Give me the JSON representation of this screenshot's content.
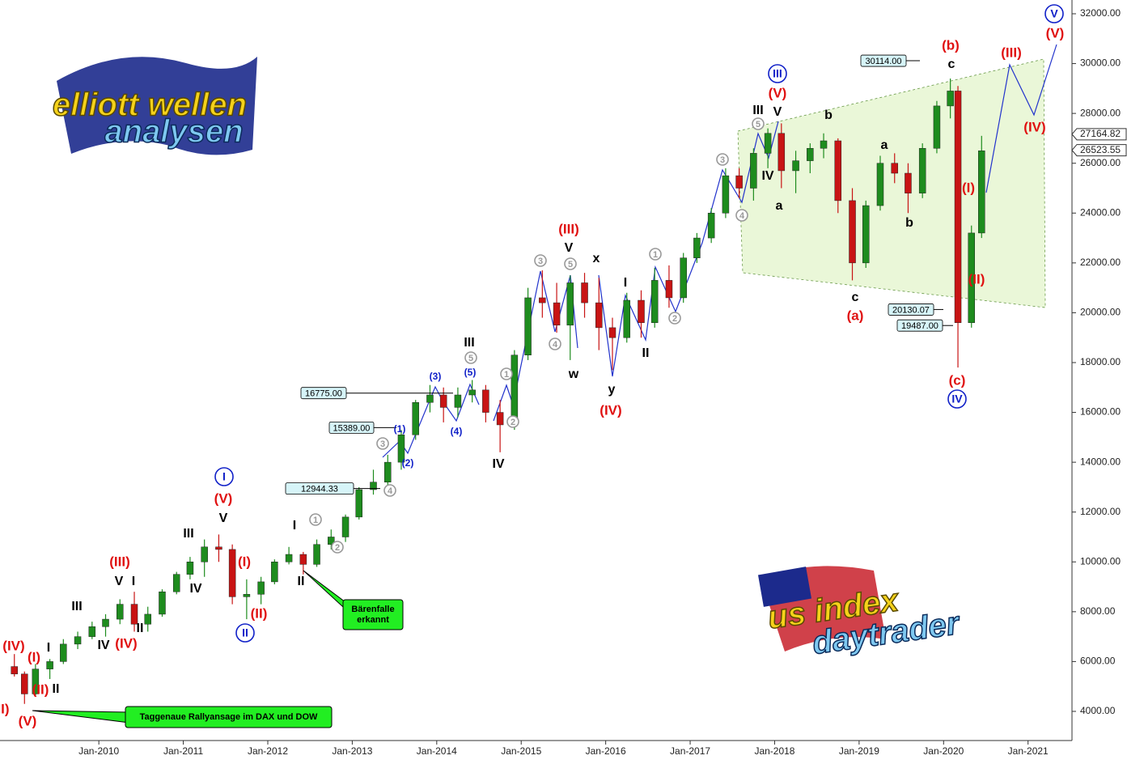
{
  "chart_data": {
    "type": "candlestick",
    "x": [
      2009.0,
      2009.12,
      2009.25,
      2009.42,
      2009.58,
      2009.75,
      2009.92,
      2010.08,
      2010.25,
      2010.42,
      2010.58,
      2010.75,
      2010.92,
      2011.08,
      2011.25,
      2011.42,
      2011.58,
      2011.75,
      2011.92,
      2012.08,
      2012.25,
      2012.42,
      2012.58,
      2012.75,
      2012.92,
      2013.08,
      2013.25,
      2013.42,
      2013.58,
      2013.75,
      2013.92,
      2014.08,
      2014.25,
      2014.42,
      2014.58,
      2014.75,
      2014.92,
      2015.08,
      2015.25,
      2015.42,
      2015.58,
      2015.75,
      2015.92,
      2016.08,
      2016.25,
      2016.42,
      2016.58,
      2016.75,
      2016.92,
      2017.08,
      2017.25,
      2017.42,
      2017.58,
      2017.75,
      2017.92,
      2018.08,
      2018.25,
      2018.42,
      2018.58,
      2018.75,
      2018.92,
      2019.08,
      2019.25,
      2019.42,
      2019.58,
      2019.75,
      2019.92,
      2020.08,
      2020.17,
      2020.33,
      2020.45
    ],
    "open": [
      5800,
      5500,
      4700,
      5700,
      6000,
      6700,
      7000,
      7400,
      7700,
      8300,
      7500,
      7900,
      8800,
      9500,
      10000,
      10600,
      10500,
      8600,
      8700,
      9200,
      10000,
      10300,
      9900,
      10700,
      11000,
      11800,
      12900,
      13200,
      14000,
      15100,
      16400,
      16700,
      16200,
      16700,
      16900,
      16000,
      15500,
      18300,
      20600,
      20400,
      19500,
      21200,
      20400,
      19400,
      19000,
      20500,
      19600,
      21300,
      20600,
      22200,
      23000,
      24000,
      25500,
      25000,
      26400,
      27200,
      25700,
      26100,
      26600,
      26900,
      24500,
      22000,
      24300,
      26000,
      25600,
      24800,
      26600,
      28300,
      28900,
      19600,
      23200
    ],
    "high": [
      6300,
      5600,
      5900,
      6100,
      6900,
      7200,
      7600,
      7900,
      8500,
      8800,
      8200,
      8900,
      9600,
      10200,
      10900,
      11100,
      10700,
      9300,
      9400,
      10100,
      10600,
      10400,
      10900,
      11300,
      11900,
      13000,
      13700,
      14300,
      15300,
      16500,
      17100,
      17000,
      17000,
      17300,
      17100,
      16500,
      18500,
      21000,
      21700,
      21200,
      21500,
      21600,
      21400,
      19800,
      20800,
      20900,
      21800,
      21900,
      22400,
      23200,
      24200,
      25800,
      25800,
      26600,
      27400,
      27600,
      26500,
      26800,
      27200,
      27000,
      25000,
      24500,
      26300,
      26400,
      26000,
      26800,
      28500,
      29400,
      29100,
      23500,
      27100
    ],
    "low": [
      5400,
      4300,
      4600,
      5300,
      5900,
      6500,
      6900,
      7000,
      7500,
      7200,
      7200,
      7800,
      8700,
      9300,
      9400,
      10000,
      8300,
      7700,
      8300,
      9100,
      9900,
      9500,
      9800,
      10500,
      10800,
      11700,
      12700,
      12900,
      13700,
      14900,
      16000,
      15600,
      15800,
      16400,
      15600,
      14400,
      15300,
      18100,
      19800,
      19200,
      18100,
      19800,
      18500,
      17700,
      18800,
      19000,
      19400,
      20200,
      20400,
      22000,
      22800,
      23800,
      24600,
      24500,
      25800,
      25000,
      24800,
      25600,
      26200,
      24000,
      21300,
      21800,
      24100,
      25200,
      24000,
      24600,
      26400,
      27800,
      17800,
      19400,
      23000
    ],
    "close": [
      5500,
      4700,
      5700,
      6000,
      6700,
      7000,
      7400,
      7700,
      8300,
      7500,
      7900,
      8800,
      9500,
      10000,
      10600,
      10500,
      8600,
      8700,
      9200,
      10000,
      10300,
      9900,
      10700,
      11000,
      11800,
      12900,
      13200,
      14000,
      15100,
      16400,
      16700,
      16200,
      16700,
      16900,
      16000,
      15500,
      18300,
      20600,
      20400,
      19500,
      21200,
      20400,
      19400,
      19000,
      20500,
      19600,
      21300,
      20600,
      22200,
      23000,
      24000,
      25500,
      25000,
      26400,
      27200,
      25700,
      26100,
      26600,
      26900,
      24500,
      22000,
      24300,
      26000,
      25600,
      24800,
      26600,
      28300,
      28900,
      19600,
      23200,
      26500
    ],
    "up_color": "#1e8c1e",
    "down_color": "#c81414",
    "xlim": [
      2008.83,
      2021.52
    ],
    "xticks": [
      {
        "value": 2010,
        "label": "Jan-2010"
      },
      {
        "value": 2011,
        "label": "Jan-2011"
      },
      {
        "value": 2012,
        "label": "Jan-2012"
      },
      {
        "value": 2013,
        "label": "Jan-2013"
      },
      {
        "value": 2014,
        "label": "Jan-2014"
      },
      {
        "value": 2015,
        "label": "Jan-2015"
      },
      {
        "value": 2016,
        "label": "Jan-2016"
      },
      {
        "value": 2017,
        "label": "Jan-2017"
      },
      {
        "value": 2018,
        "label": "Jan-2018"
      },
      {
        "value": 2019,
        "label": "Jan-2019"
      },
      {
        "value": 2020,
        "label": "Jan-2020"
      },
      {
        "value": 2021,
        "label": "Jan-2021"
      }
    ],
    "ylim": [
      2830,
      32552
    ],
    "yticks": [
      {
        "value": 4000,
        "label": "4000.00"
      },
      {
        "value": 6000,
        "label": "6000.00"
      },
      {
        "value": 8000,
        "label": "8000.00"
      },
      {
        "value": 10000,
        "label": "10000.00"
      },
      {
        "value": 12000,
        "label": "12000.00"
      },
      {
        "value": 14000,
        "label": "14000.00"
      },
      {
        "value": 16000,
        "label": "16000.00"
      },
      {
        "value": 18000,
        "label": "18000.00"
      },
      {
        "value": 20000,
        "label": "20000.00"
      },
      {
        "value": 22000,
        "label": "22000.00"
      },
      {
        "value": 24000,
        "label": "24000.00"
      },
      {
        "value": 26000,
        "label": "26000.00"
      },
      {
        "value": 28000,
        "label": "28000.00"
      },
      {
        "value": 30000,
        "label": "30000.00"
      },
      {
        "value": 32000,
        "label": "32000.00"
      }
    ],
    "price_labels": [
      {
        "value": 30114,
        "label": "30114.00"
      },
      {
        "value": 20130.07,
        "label": "20130.07"
      },
      {
        "value": 19487,
        "label": "19487.00"
      },
      {
        "value": 16775,
        "label": "16775.00"
      },
      {
        "value": 15389,
        "label": "15389.00"
      },
      {
        "value": 12944.33,
        "label": "12944.33"
      }
    ],
    "last_prices": [
      {
        "value": 27164.82,
        "label": "27164.82"
      },
      {
        "value": 26523.55,
        "label": "26523.55"
      }
    ],
    "callouts": [
      {
        "lines": [
          "Bärenfalle",
          "erkannt"
        ]
      },
      {
        "lines": [
          "Taggenaue Rallyansage im DAX und DOW"
        ]
      }
    ],
    "annotations": [
      {
        "text": "II)",
        "style": "red"
      },
      {
        "text": "(V)",
        "style": "red"
      },
      {
        "text": "(IV)",
        "style": "red"
      },
      {
        "text": "(I)",
        "style": "red"
      },
      {
        "text": "(II)",
        "style": "red"
      },
      {
        "text": "I",
        "style": "black"
      },
      {
        "text": "II",
        "style": "black"
      },
      {
        "text": "III",
        "style": "black"
      },
      {
        "text": "IV",
        "style": "black"
      },
      {
        "text": "(IV)",
        "style": "red"
      },
      {
        "text": "V",
        "style": "black"
      },
      {
        "text": "I",
        "style": "black"
      },
      {
        "text": "II",
        "style": "black"
      },
      {
        "text": "(III)",
        "style": "red"
      },
      {
        "text": "III",
        "style": "black"
      },
      {
        "text": "IV",
        "style": "black"
      },
      {
        "text": "V",
        "style": "black"
      },
      {
        "text": "(V)",
        "style": "red"
      },
      {
        "text": "I",
        "style": "blue-circle"
      },
      {
        "text": "(I)",
        "style": "red"
      },
      {
        "text": "(II)",
        "style": "red"
      },
      {
        "text": "II",
        "style": "blue-circle"
      },
      {
        "text": "I",
        "style": "black"
      },
      {
        "text": "II",
        "style": "black"
      },
      {
        "text": "1",
        "style": "grey-circle"
      },
      {
        "text": "2",
        "style": "grey-circle"
      },
      {
        "text": "3",
        "style": "grey-circle"
      },
      {
        "text": "4",
        "style": "grey-circle"
      },
      {
        "text": "(1)",
        "style": "blue"
      },
      {
        "text": "(2)",
        "style": "blue"
      },
      {
        "text": "(3)",
        "style": "blue"
      },
      {
        "text": "(4)",
        "style": "blue"
      },
      {
        "text": "(5)",
        "style": "blue"
      },
      {
        "text": "III",
        "style": "black"
      },
      {
        "text": "5",
        "style": "grey-circle"
      },
      {
        "text": "IV",
        "style": "black"
      },
      {
        "text": "1",
        "style": "grey-circle"
      },
      {
        "text": "2",
        "style": "grey-circle"
      },
      {
        "text": "(III)",
        "style": "red"
      },
      {
        "text": "V",
        "style": "black"
      },
      {
        "text": "3",
        "style": "grey-circle"
      },
      {
        "text": "5",
        "style": "grey-circle"
      },
      {
        "text": "4",
        "style": "grey-circle"
      },
      {
        "text": "w",
        "style": "black"
      },
      {
        "text": "x",
        "style": "black"
      },
      {
        "text": "y",
        "style": "black"
      },
      {
        "text": "(IV)",
        "style": "red"
      },
      {
        "text": "I",
        "style": "black"
      },
      {
        "text": "II",
        "style": "black"
      },
      {
        "text": "1",
        "style": "grey-circle"
      },
      {
        "text": "2",
        "style": "grey-circle"
      },
      {
        "text": "3",
        "style": "grey-circle"
      },
      {
        "text": "4",
        "style": "grey-circle"
      },
      {
        "text": "III",
        "style": "black"
      },
      {
        "text": "5",
        "style": "grey-circle"
      },
      {
        "text": "V",
        "style": "black"
      },
      {
        "text": "(V)",
        "style": "red"
      },
      {
        "text": "III",
        "style": "blue-circle"
      },
      {
        "text": "IV",
        "style": "black"
      },
      {
        "text": "a",
        "style": "black"
      },
      {
        "text": "b",
        "style": "black"
      },
      {
        "text": "c",
        "style": "black"
      },
      {
        "text": "(a)",
        "style": "red"
      },
      {
        "text": "a",
        "style": "black"
      },
      {
        "text": "b",
        "style": "black"
      },
      {
        "text": "(b)",
        "style": "red"
      },
      {
        "text": "c",
        "style": "black"
      },
      {
        "text": "(I)",
        "style": "red"
      },
      {
        "text": "(II)",
        "style": "red"
      },
      {
        "text": "(c)",
        "style": "red"
      },
      {
        "text": "IV",
        "style": "blue-circle"
      },
      {
        "text": "(III)",
        "style": "red"
      },
      {
        "text": "(IV)",
        "style": "red"
      },
      {
        "text": "V",
        "style": "blue-circle"
      },
      {
        "text": "(V)",
        "style": "red"
      }
    ]
  },
  "logos": {
    "top_left": [
      "elliott wellen",
      "analysen"
    ],
    "bottom_right": [
      "us index",
      "daytrader"
    ]
  }
}
